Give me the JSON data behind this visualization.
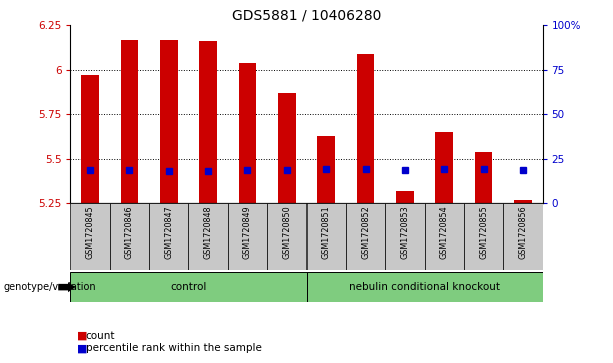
{
  "title": "GDS5881 / 10406280",
  "samples": [
    "GSM1720845",
    "GSM1720846",
    "GSM1720847",
    "GSM1720848",
    "GSM1720849",
    "GSM1720850",
    "GSM1720851",
    "GSM1720852",
    "GSM1720853",
    "GSM1720854",
    "GSM1720855",
    "GSM1720856"
  ],
  "count_values": [
    5.97,
    6.17,
    6.17,
    6.16,
    6.04,
    5.87,
    5.63,
    6.09,
    5.32,
    5.65,
    5.54,
    5.27
  ],
  "percentile_values": [
    5.435,
    5.435,
    5.43,
    5.43,
    5.435,
    5.435,
    5.44,
    5.44,
    5.435,
    5.44,
    5.44,
    5.435
  ],
  "ymin": 5.25,
  "ymax": 6.25,
  "y_ticks": [
    5.25,
    5.5,
    5.75,
    6.0,
    6.25
  ],
  "y_tick_labels": [
    "5.25",
    "5.5",
    "5.75",
    "6",
    "6.25"
  ],
  "right_yticks": [
    0,
    25,
    50,
    75,
    100
  ],
  "right_ytick_labels": [
    "0",
    "25",
    "50",
    "75",
    "100%"
  ],
  "group_labels": [
    "control",
    "nebulin conditional knockout"
  ],
  "group_split": 6,
  "group_color": "#7FCC7F",
  "group_label_prefix": "genotype/variation",
  "bar_color": "#CC0000",
  "percentile_color": "#0000CC",
  "tick_area_bg": "#C8C8C8",
  "title_fontsize": 10,
  "axis_label_color_left": "#CC0000",
  "axis_label_color_right": "#0000CC",
  "legend_items": [
    "count",
    "percentile rank within the sample"
  ],
  "grid_yticks": [
    5.5,
    5.75,
    6.0
  ]
}
